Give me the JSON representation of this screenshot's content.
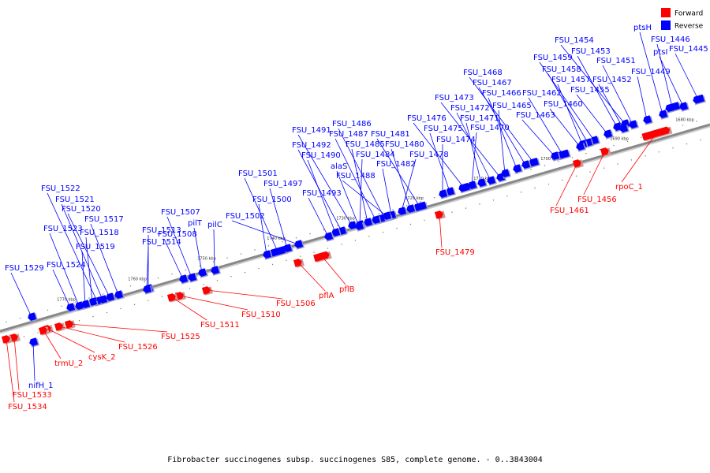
{
  "caption": "Fibrobacter succinogenes subsp. succinogenes S85, complete genome. - 0..3843004",
  "colors": {
    "forward": "#ff0000",
    "reverse": "#0000ff",
    "backbone": "#888888"
  },
  "legend": [
    {
      "key": "forward",
      "label": "Forward"
    },
    {
      "key": "reverse",
      "label": "Reverse"
    }
  ],
  "tick_labels": [
    "1680 kbp",
    "1690 kbp",
    "1700 kbp",
    "1710 kbp",
    "1720 kbp",
    "1730 kbp",
    "1740 kbp",
    "1750 kbp",
    "1760 kbp",
    "1770 kbp"
  ],
  "reverse_genes": [
    "FSU_1446",
    "FSU_1445",
    "ptsH",
    "ptsI",
    "FSU_1449",
    "FSU_1454",
    "FSU_1453",
    "FSU_1459",
    "FSU_1451",
    "FSU_1458",
    "FSU_1457",
    "FSU_1452",
    "FSU_1455",
    "FSU_1468",
    "FSU_1467",
    "FSU_1466",
    "FSU_1462",
    "FSU_1473",
    "FSU_1465",
    "FSU_1460",
    "FSU_1472",
    "FSU_1471",
    "FSU_1463",
    "FSU_1476",
    "FSU_1470",
    "FSU_1475",
    "FSU_1474",
    "FSU_1486",
    "FSU_1491",
    "FSU_1487",
    "FSU_1481",
    "FSU_1492",
    "FSU_1485",
    "FSU_1480",
    "FSU_1478",
    "FSU_1490",
    "FSU_1484",
    "alaS",
    "FSU_1482",
    "FSU_1488",
    "FSU_1501",
    "FSU_1497",
    "FSU_1493",
    "FSU_1500",
    "FSU_1522",
    "FSU_1521",
    "FSU_1520",
    "FSU_1507",
    "FSU_1517",
    "FSU_1502",
    "pilT",
    "pilC",
    "FSU_1523",
    "FSU_1513",
    "FSU_1518",
    "FSU_1508",
    "FSU_1519",
    "FSU_1514",
    "FSU_1524",
    "FSU_1529",
    "nifH_1"
  ],
  "forward_genes": [
    "rpoC_1",
    "FSU_1456",
    "FSU_1461",
    "FSU_1479",
    "pflB",
    "pflA",
    "FSU_1506",
    "FSU_1510",
    "FSU_1511",
    "FSU_1525",
    "FSU_1526",
    "cysK_2",
    "trmU_2",
    "FSU_1533",
    "FSU_1534"
  ]
}
